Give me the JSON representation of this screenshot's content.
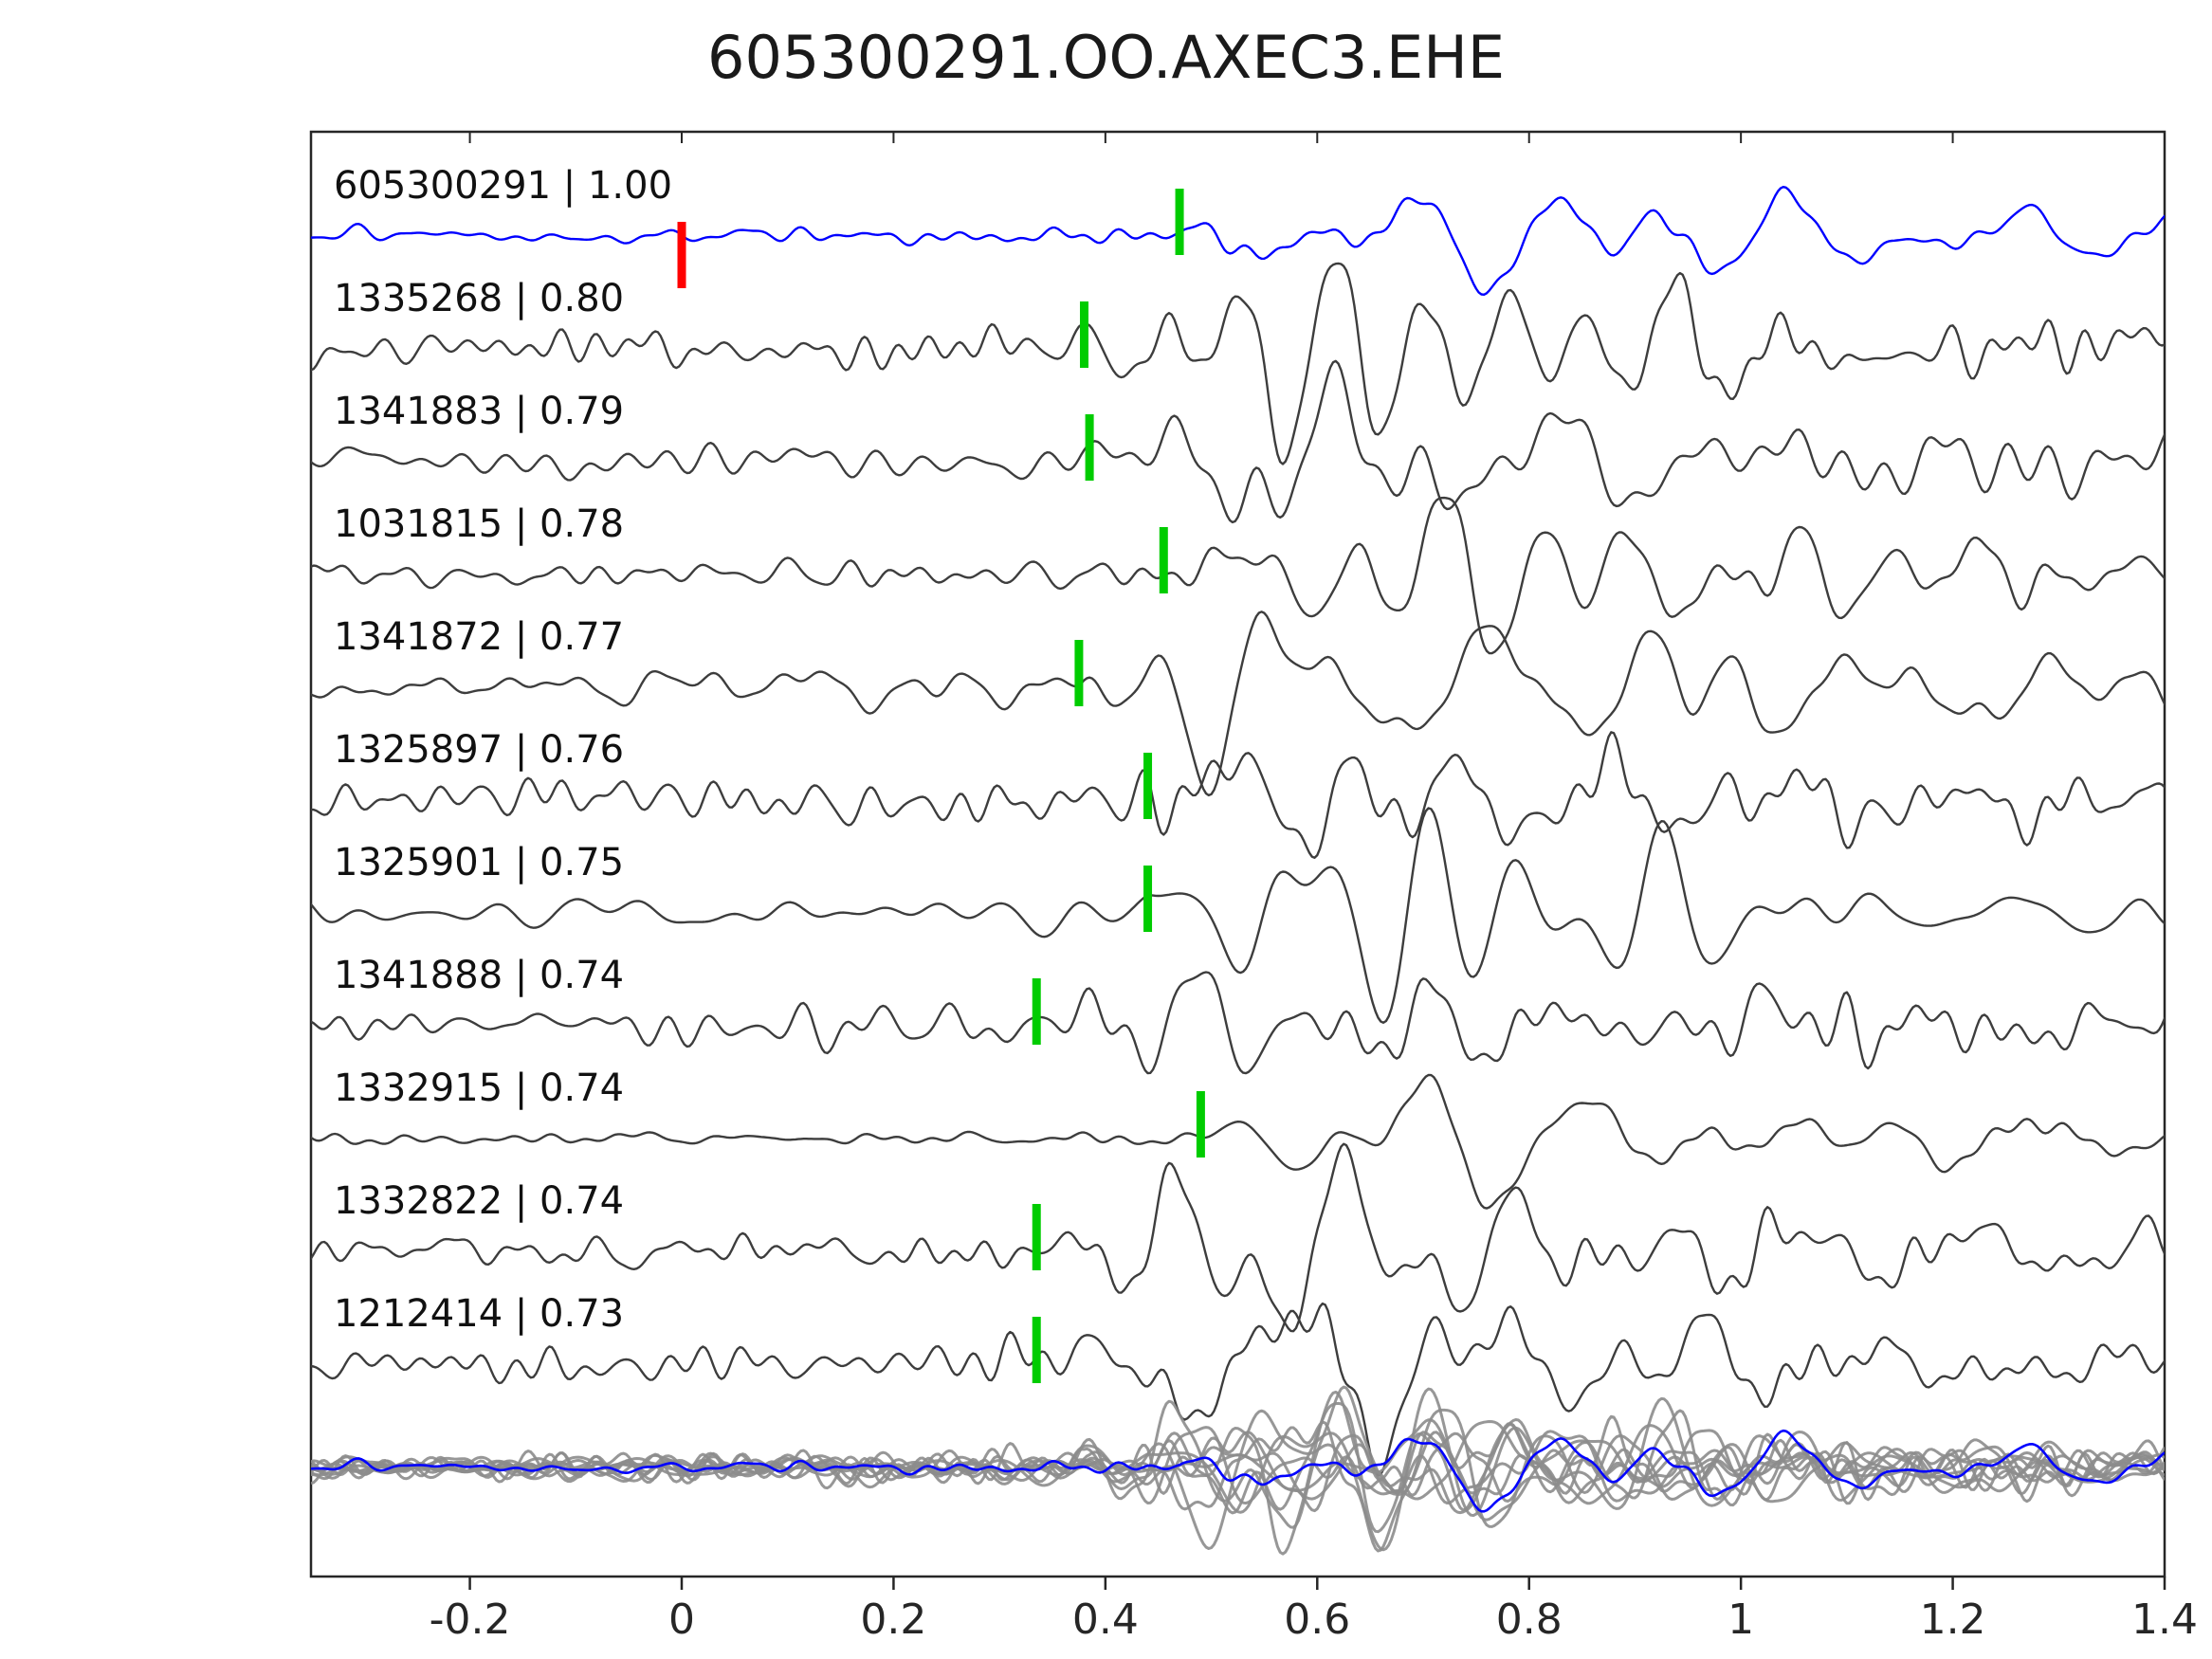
{
  "title": "605300291.OO.AXEC3.EHE",
  "chart_data": {
    "type": "line",
    "title": "605300291.OO.AXEC3.EHE",
    "description": "Stacked seismogram traces with cross-correlation coefficients and phase picks; bottom row shows all aligned traces overlaid with the reference trace in blue.",
    "xlim": [
      -0.35,
      1.4
    ],
    "x_ticks": [
      -0.2,
      0,
      0.2,
      0.4,
      0.6,
      0.8,
      1,
      1.2,
      1.4
    ],
    "x_tick_labels": [
      "-0.2",
      "0",
      "0.2",
      "0.4",
      "0.6",
      "0.8",
      "1",
      "1.2",
      "1.4"
    ],
    "grid": false,
    "legend": "none",
    "colors": {
      "reference": "#0000ff",
      "trace": "#3d3d3d",
      "pick": "#00cc00",
      "reference_pick": "#ff0000",
      "overlay": "#8c8c8c",
      "axis": "#262626",
      "label_text": "#111111"
    },
    "traces": [
      {
        "id": "605300291",
        "label": "605300291 | 1.00",
        "cc": "1.00",
        "pick": 0.47,
        "ref_pick": 0.0,
        "is_reference": true,
        "noise_amp": 6,
        "event_amp": 34,
        "coda": 0.9
      },
      {
        "id": "1335268",
        "label": "1335268 | 0.80",
        "cc": "0.80",
        "pick": 0.38,
        "is_reference": false,
        "noise_amp": 11,
        "event_amp": 60,
        "coda": 0.55
      },
      {
        "id": "1341883",
        "label": "1341883 | 0.79",
        "cc": "0.79",
        "pick": 0.385,
        "is_reference": false,
        "noise_amp": 11,
        "event_amp": 62,
        "coda": 0.5
      },
      {
        "id": "1031815",
        "label": "1031815 | 0.78",
        "cc": "0.78",
        "pick": 0.455,
        "is_reference": false,
        "noise_amp": 8,
        "event_amp": 55,
        "coda": 0.6
      },
      {
        "id": "1341872",
        "label": "1341872 | 0.77",
        "cc": "0.77",
        "pick": 0.375,
        "is_reference": false,
        "noise_amp": 12,
        "event_amp": 62,
        "coda": 0.5
      },
      {
        "id": "1325897",
        "label": "1325897 | 0.76",
        "cc": "0.76",
        "pick": 0.44,
        "is_reference": false,
        "noise_amp": 12,
        "event_amp": 46,
        "coda": 0.55
      },
      {
        "id": "1325901",
        "label": "1325901 | 0.75",
        "cc": "0.75",
        "pick": 0.44,
        "is_reference": false,
        "noise_amp": 9,
        "event_amp": 50,
        "coda": 0.6
      },
      {
        "id": "1341888",
        "label": "1341888 | 0.74",
        "cc": "0.74",
        "pick": 0.335,
        "is_reference": false,
        "noise_amp": 11,
        "event_amp": 48,
        "coda": 0.55
      },
      {
        "id": "1332915",
        "label": "1332915 | 0.74",
        "cc": "0.74",
        "pick": 0.49,
        "is_reference": false,
        "noise_amp": 4,
        "event_amp": 55,
        "coda": 0.25
      },
      {
        "id": "1332822",
        "label": "1332822 | 0.74",
        "cc": "0.74",
        "pick": 0.335,
        "is_reference": false,
        "noise_amp": 10,
        "event_amp": 46,
        "coda": 0.55
      },
      {
        "id": "1212414",
        "label": "1212414 | 0.73",
        "cc": "0.73",
        "pick": 0.335,
        "is_reference": false,
        "noise_amp": 10,
        "event_amp": 55,
        "coda": 0.5
      }
    ],
    "overlay": {
      "includes_all_traces": true,
      "scale": 0.75
    }
  }
}
